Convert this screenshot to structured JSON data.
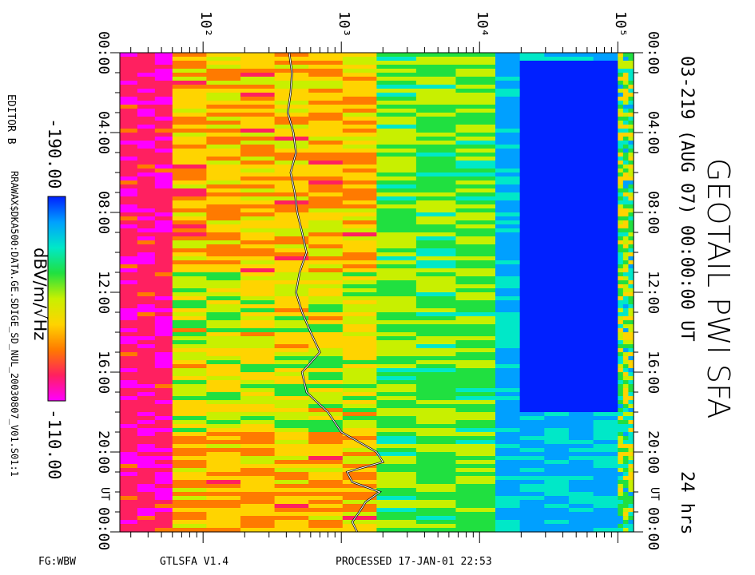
{
  "header": {
    "title": "GEOTAIL PWI SFA",
    "subtitle": "03-219 (AUG 07) 00:00:00 UT",
    "duration": "24 hrs",
    "editor": "EDITOR B",
    "file_path": "RRAWAX$DKA500:DATA.GE.SDIGE_SD_NUL_20030807_V01.S01:1"
  },
  "footer": {
    "left": "FG:WBW",
    "program": "GTLSFA   V1.4",
    "processed": "PROCESSED 17-JAN-01   22:53"
  },
  "colorbar": {
    "min_label": "-190.00",
    "max_label": "-110.00",
    "unit": "dBV/m/√Hz",
    "stops": [
      "#ff00ff",
      "#ff2060",
      "#ff7a00",
      "#ffd400",
      "#c8f000",
      "#20e040",
      "#00e8c8",
      "#00a0ff",
      "#0020ff"
    ]
  },
  "chart_data": {
    "type": "heatmap",
    "title": "GEOTAIL PWI SFA",
    "frequency_axis": {
      "scale": "log",
      "range_hz": [
        25,
        130000
      ],
      "tick_labels": [
        "10²",
        "10³",
        "10⁴",
        "10⁵"
      ],
      "tick_values": [
        100,
        1000,
        10000,
        100000
      ]
    },
    "time_axis": {
      "range_hr": [
        0,
        24
      ],
      "tick_labels": [
        "00:00",
        "04:00",
        "08:00",
        "12:00",
        "16:00",
        "20:00",
        "00:00"
      ],
      "tick_hours": [
        0,
        4,
        8,
        12,
        16,
        20,
        24
      ],
      "ut_label": "UT"
    },
    "color_scale_db": [
      -190,
      -110
    ],
    "trace_line": {
      "color": "#000000",
      "hours": [
        0,
        1,
        2,
        3,
        4,
        5,
        6,
        7,
        8,
        9,
        10,
        11,
        12,
        13,
        14,
        15,
        16,
        17,
        18,
        19,
        20,
        20.5,
        21,
        21.5,
        22,
        22.5,
        23,
        23.5,
        24
      ],
      "freq_hz": [
        420,
        440,
        430,
        410,
        450,
        470,
        430,
        460,
        480,
        520,
        560,
        500,
        470,
        520,
        600,
        700,
        520,
        560,
        800,
        1000,
        1800,
        2000,
        1100,
        1200,
        1900,
        1500,
        1350,
        1200,
        1300
      ]
    },
    "bands": [
      {
        "f_lo": 25,
        "f_hi": 1800,
        "dominant": "red-yellow"
      },
      {
        "f_lo": 1800,
        "f_hi": 13000,
        "dominant": "yellow-green"
      },
      {
        "f_lo": 13000,
        "f_hi": 100000,
        "dominant": "blue"
      },
      {
        "f_lo": 100000,
        "f_hi": 130000,
        "dominant": "cyan-yellow"
      }
    ]
  }
}
